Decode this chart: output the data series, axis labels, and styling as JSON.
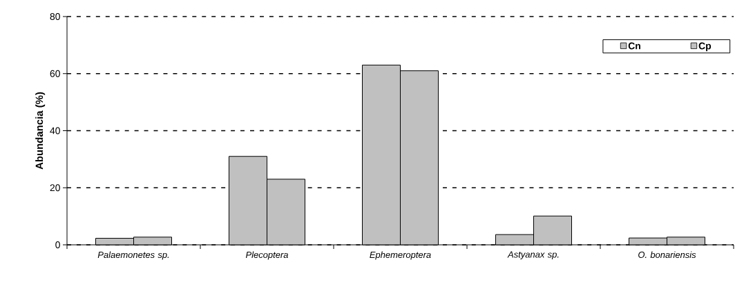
{
  "chart_data": {
    "type": "bar",
    "ylabel": "Abundancia (%)",
    "categories": [
      "Palaemonetes sp.",
      "Plecoptera",
      "Ephemeroptera",
      "Astyanax sp.",
      "O. bonariensis"
    ],
    "series": [
      {
        "name": "Cn",
        "color": "#c0c0c0",
        "values": [
          2.3,
          31,
          63,
          3.6,
          2.4
        ]
      },
      {
        "name": "Cp",
        "color": "#c0c0c0",
        "values": [
          2.7,
          23,
          61,
          10.1,
          2.7
        ]
      }
    ],
    "ylim": [
      0,
      80
    ],
    "yticks": [
      0,
      20,
      40,
      60,
      80
    ],
    "grid": "y",
    "legend": "top right"
  }
}
